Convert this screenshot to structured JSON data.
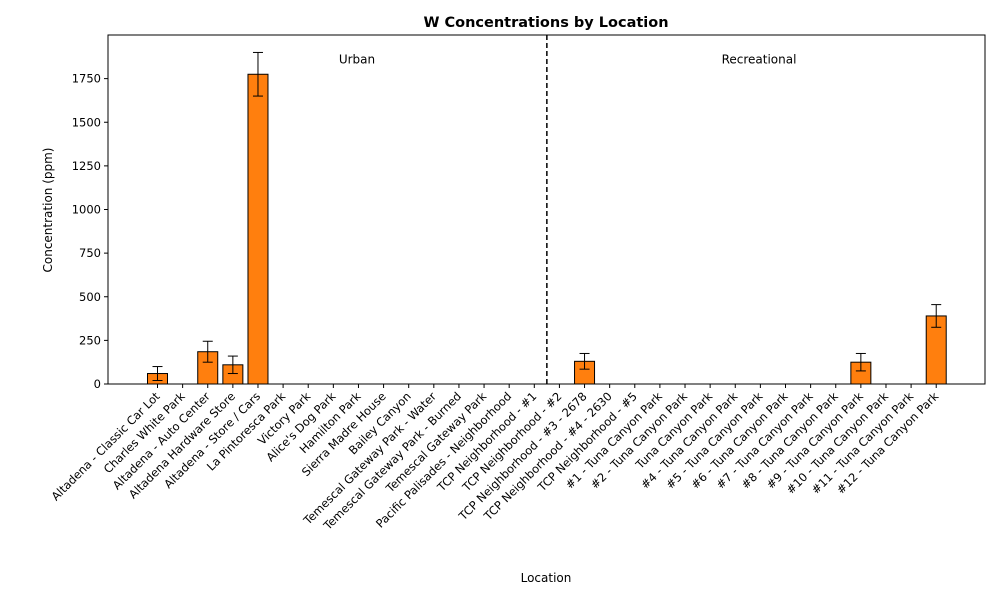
{
  "chart_data": {
    "type": "bar",
    "title": "W Concentrations by Location",
    "xlabel": "Location",
    "ylabel": "Concentration (ppm)",
    "ylim": [
      0,
      2000
    ],
    "yticks": [
      0,
      250,
      500,
      750,
      1000,
      1250,
      1500,
      1750
    ],
    "grid": false,
    "bar_color": "#ff7f0e",
    "edge_color": "#000000",
    "categories": [
      "Altadena - Classic Car Lot",
      "Charles White Park",
      "Altadena - Auto Center",
      "Altadena Hardware Store",
      "Altadena - Store / Cars",
      "La Pintoresca Park",
      "Victory Park",
      "Alice's Dog Park",
      "Hamilton Park",
      "Sierra Madre House",
      "Bailey Canyon",
      "Temescal Gateway Park - Water",
      "Temescal Gateway Park - Burned",
      "Temescal Gateway Park",
      "Pacific Palisades - Neighborhood",
      "TCP Neighborhood - #1",
      "TCP Neighborhood - #2",
      "TCP Neighborhood - #3 - 2678",
      "TCP Neighborhood - #4 - 2630",
      "TCP Neighborhood - #5",
      "#1 - Tuna Canyon Park",
      "#2 - Tuna Canyon Park",
      "Tuna Canyon Park",
      "#4 - Tuna Canyon Park",
      "#5 - Tuna Canyon Park",
      "#6 - Tuna Canyon Park",
      "#7 - Tuna Canyon Park",
      "#8 - Tuna Canyon Park",
      "#9 - Tuna Canyon Park",
      "#10 - Tuna Canyon Park",
      "#11 - Tuna Canyon Park",
      "#12 - Tuna Canyon Park"
    ],
    "values": [
      60,
      null,
      185,
      110,
      1775,
      null,
      null,
      null,
      null,
      null,
      null,
      null,
      null,
      null,
      null,
      null,
      null,
      130,
      null,
      null,
      null,
      null,
      null,
      null,
      null,
      null,
      null,
      null,
      125,
      null,
      null,
      390
    ],
    "errors": [
      40,
      null,
      60,
      50,
      125,
      null,
      null,
      null,
      null,
      null,
      null,
      null,
      null,
      null,
      null,
      null,
      null,
      45,
      null,
      null,
      null,
      null,
      null,
      null,
      null,
      null,
      null,
      null,
      50,
      null,
      null,
      65
    ],
    "divider_after_index": 15,
    "regions": [
      "Urban",
      "Recreational"
    ]
  }
}
